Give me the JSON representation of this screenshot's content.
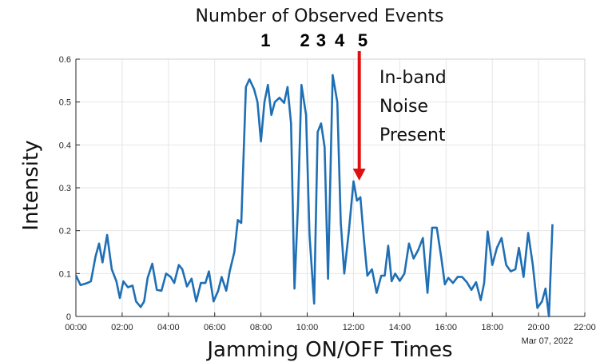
{
  "chart_data": {
    "type": "line",
    "title": "Number of Observed Events",
    "xlabel": "Jamming ON/OFF Times",
    "ylabel": "Intensity",
    "date_label": "Mar 07, 2022",
    "xlim": [
      0,
      22
    ],
    "ylim": [
      0,
      0.6
    ],
    "x_ticks": [
      0,
      2,
      4,
      6,
      8,
      10,
      12,
      14,
      16,
      18,
      20,
      22
    ],
    "x_tick_labels": [
      "00:00",
      "02:00",
      "04:00",
      "06:00",
      "08:00",
      "10:00",
      "12:00",
      "14:00",
      "16:00",
      "18:00",
      "20:00",
      "22:00"
    ],
    "y_ticks": [
      0,
      0.1,
      0.2,
      0.3,
      0.4,
      0.5,
      0.6
    ],
    "y_tick_labels": [
      "0",
      "0.1",
      "0.2",
      "0.3",
      "0.4",
      "0.5",
      "0.6"
    ],
    "grid": true,
    "line_color": "#1f6fb5",
    "series": [
      {
        "x": [
          0.0,
          0.2,
          0.5,
          0.65,
          0.85,
          1.0,
          1.15,
          1.35,
          1.55,
          1.75,
          1.9,
          2.05,
          2.25,
          2.45,
          2.6,
          2.8,
          2.95,
          3.1,
          3.3,
          3.5,
          3.7,
          3.9,
          4.1,
          4.25,
          4.45,
          4.6,
          4.8,
          5.0,
          5.2,
          5.4,
          5.6,
          5.75,
          5.95,
          6.15,
          6.3,
          6.5,
          6.65,
          6.85,
          7.0,
          7.15,
          7.35,
          7.5,
          7.7,
          7.85,
          8.0,
          8.15,
          8.3,
          8.45,
          8.6,
          8.8,
          9.0,
          9.15,
          9.3,
          9.45,
          9.6,
          9.75,
          9.95,
          10.1,
          10.3,
          10.45,
          10.6,
          10.75,
          10.9,
          11.1,
          11.3,
          11.45,
          11.6,
          11.8,
          12.0,
          12.15,
          12.3,
          12.45,
          12.6,
          12.8,
          13.0,
          13.2,
          13.35,
          13.5,
          13.65,
          13.8,
          14.0,
          14.2,
          14.4,
          14.6,
          14.8,
          15.0,
          15.2,
          15.4,
          15.6,
          15.8,
          15.95,
          16.1,
          16.3,
          16.5,
          16.7,
          16.9,
          17.1,
          17.3,
          17.5,
          17.65,
          17.8,
          18.0,
          18.2,
          18.4,
          18.6,
          18.8,
          19.0,
          19.15,
          19.35,
          19.55,
          19.75,
          19.95,
          20.15,
          20.3,
          20.45,
          20.6
        ],
        "y": [
          0.096,
          0.073,
          0.078,
          0.082,
          0.14,
          0.17,
          0.126,
          0.19,
          0.11,
          0.082,
          0.043,
          0.082,
          0.068,
          0.072,
          0.035,
          0.022,
          0.035,
          0.09,
          0.123,
          0.062,
          0.06,
          0.1,
          0.092,
          0.078,
          0.12,
          0.11,
          0.07,
          0.088,
          0.035,
          0.078,
          0.078,
          0.105,
          0.035,
          0.06,
          0.092,
          0.06,
          0.105,
          0.15,
          0.225,
          0.218,
          0.535,
          0.553,
          0.53,
          0.5,
          0.408,
          0.5,
          0.54,
          0.47,
          0.5,
          0.51,
          0.498,
          0.535,
          0.45,
          0.065,
          0.26,
          0.54,
          0.47,
          0.19,
          0.03,
          0.43,
          0.45,
          0.395,
          0.088,
          0.563,
          0.5,
          0.22,
          0.1,
          0.2,
          0.315,
          0.27,
          0.278,
          0.18,
          0.095,
          0.11,
          0.055,
          0.095,
          0.095,
          0.165,
          0.082,
          0.1,
          0.083,
          0.1,
          0.17,
          0.135,
          0.155,
          0.183,
          0.055,
          0.207,
          0.207,
          0.135,
          0.075,
          0.09,
          0.078,
          0.092,
          0.092,
          0.08,
          0.062,
          0.08,
          0.038,
          0.078,
          0.198,
          0.12,
          0.16,
          0.183,
          0.12,
          0.105,
          0.11,
          0.16,
          0.092,
          0.195,
          0.12,
          0.02,
          0.035,
          0.065,
          0.0,
          0.215
        ]
      }
    ]
  },
  "event_labels": [
    {
      "text": "1",
      "x": 8.2
    },
    {
      "text": "2",
      "x": 9.9
    },
    {
      "text": "3",
      "x": 10.6
    },
    {
      "text": "4",
      "x": 11.4
    },
    {
      "text": "5",
      "x": 12.4
    }
  ],
  "annotation": {
    "lines": [
      "In-band",
      "Noise",
      "Present"
    ],
    "arrow_color": "#e01010",
    "arrow_x": 12.25,
    "arrow_y_end": 0.315
  }
}
